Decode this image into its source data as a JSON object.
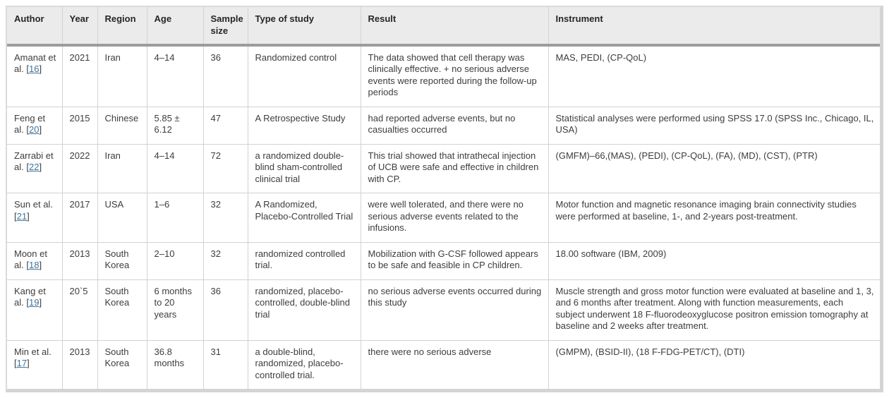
{
  "table": {
    "citation_open": "[",
    "citation_close": "]",
    "columns": [
      {
        "key": "author",
        "label": "Author"
      },
      {
        "key": "year",
        "label": "Year"
      },
      {
        "key": "region",
        "label": "Region"
      },
      {
        "key": "age",
        "label": "Age"
      },
      {
        "key": "sample_size",
        "label": "Sample size"
      },
      {
        "key": "type_of_study",
        "label": "Type of study"
      },
      {
        "key": "result",
        "label": "Result"
      },
      {
        "key": "instrument",
        "label": "Instrument"
      }
    ],
    "rows": [
      {
        "author": "Amanat et al.",
        "citation": "16",
        "year": "2021",
        "region": "Iran",
        "age": "4–14",
        "sample_size": "36",
        "type_of_study": "Randomized control",
        "result": "The data showed that cell therapy was clinically effective. + no serious adverse events were reported during the follow-up periods",
        "instrument": "MAS, PEDI, (CP-QoL)"
      },
      {
        "author": "Feng et al.",
        "citation": "20",
        "year": "2015",
        "region": "Chinese",
        "age": "5.85 ± 6.12",
        "sample_size": "47",
        "type_of_study": "A Retrospective Study",
        "result": "had reported adverse events, but no casualties occurred",
        "instrument": "Statistical analyses were performed using SPSS 17.0 (SPSS Inc., Chicago, IL, USA)"
      },
      {
        "author": "Zarrabi et al.",
        "citation": "22",
        "year": "2022",
        "region": "Iran",
        "age": "4–14",
        "sample_size": "72",
        "type_of_study": "a randomized double-blind sham-controlled clinical trial",
        "result": "This trial showed that intrathecal injection of UCB were safe and effective in children with CP.",
        "instrument": "(GMFM)–66,(MAS), (PEDI), (CP-QoL), (FA), (MD), (CST), (PTR)"
      },
      {
        "author": "Sun et al.",
        "citation": "21",
        "year": "2017",
        "region": "USA",
        "age": "1–6",
        "sample_size": "32",
        "type_of_study": "A Randomized, Placebo-Controlled Trial",
        "result": "were well tolerated, and there were no serious adverse events related to the infusions.",
        "instrument": "Motor function and magnetic resonance imaging brain connectivity studies were performed at baseline, 1-, and 2-years post-treatment."
      },
      {
        "author": "Moon et al.",
        "citation": "18",
        "year": "2013",
        "region": "South Korea",
        "age": "2–10",
        "sample_size": "32",
        "type_of_study": "randomized controlled trial.",
        "result": "Mobilization with G-CSF followed appears to be safe and feasible in CP children.",
        "instrument": "18.00 software (IBM, 2009)"
      },
      {
        "author": "Kang et al.",
        "citation": "19",
        "year": "20`5",
        "region": "South Korea",
        "age": "6 months to 20 years",
        "sample_size": "36",
        "type_of_study": "randomized, placebo-controlled, double-blind trial",
        "result": "no serious adverse events occurred during this study",
        "instrument": "Muscle strength and gross motor function were evaluated at baseline and 1, 3, and 6 months after treatment. Along with function measurements, each subject underwent 18 F-fluorodeoxyglucose positron emission tomography at baseline and 2 weeks after treatment."
      },
      {
        "author": "Min et al.",
        "citation": "17",
        "year": "2013",
        "region": "South Korea",
        "age": "36.8 months",
        "sample_size": "31",
        "type_of_study": "a double-blind, randomized, placebo-controlled trial.",
        "result": "there were no serious adverse",
        "instrument": "(GMPM), (BSID-II), (18 F-FDG-PET/CT), (DTI)"
      }
    ]
  }
}
